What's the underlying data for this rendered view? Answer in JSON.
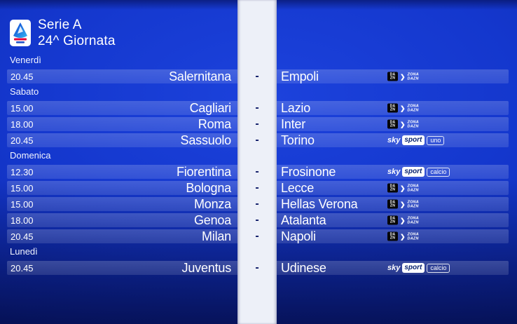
{
  "header": {
    "title": "Serie A",
    "subtitle": "24^ Giornata",
    "logo_name": "lega-serie-a-tim-logo"
  },
  "divider": {
    "dash": "-"
  },
  "colors": {
    "background_blue": "#1437cd",
    "stripe_light": "#edf0f8",
    "dash_navy": "#0c1966",
    "dazn_black": "#060606",
    "logo_red": "#e4003a",
    "sport_box_text": "#0a2472"
  },
  "channels": {
    "zona-dazn": {
      "type": "dazn",
      "box_line1": "DA",
      "box_line2": "ZN",
      "chevron": "❯",
      "stack_line1": "ZONA",
      "stack_line2": "DAZN"
    },
    "sky-sport-uno": {
      "type": "sky",
      "sky": "sky",
      "sport": "sport",
      "suffix": "uno"
    },
    "sky-sport-calcio": {
      "type": "sky",
      "sky": "sky",
      "sport": "sport",
      "suffix": "calcio"
    }
  },
  "schedule": {
    "days": [
      {
        "label": "Venerdì",
        "matches": [
          {
            "time": "20.45",
            "home": "Salernitana",
            "away": "Empoli",
            "channel": "zona-dazn"
          }
        ]
      },
      {
        "label": "Sabato",
        "matches": [
          {
            "time": "15.00",
            "home": "Cagliari",
            "away": "Lazio",
            "channel": "zona-dazn"
          },
          {
            "time": "18.00",
            "home": "Roma",
            "away": "Inter",
            "channel": "zona-dazn"
          },
          {
            "time": "20.45",
            "home": "Sassuolo",
            "away": "Torino",
            "channel": "sky-sport-uno"
          }
        ]
      },
      {
        "label": "Domenica",
        "matches": [
          {
            "time": "12.30",
            "home": "Fiorentina",
            "away": "Frosinone",
            "channel": "sky-sport-calcio"
          },
          {
            "time": "15.00",
            "home": "Bologna",
            "away": "Lecce",
            "channel": "zona-dazn"
          },
          {
            "time": "15.00",
            "home": "Monza",
            "away": "Hellas Verona",
            "channel": "zona-dazn"
          },
          {
            "time": "18.00",
            "home": "Genoa",
            "away": "Atalanta",
            "channel": "zona-dazn"
          },
          {
            "time": "20.45",
            "home": "Milan",
            "away": "Napoli",
            "channel": "zona-dazn"
          }
        ]
      },
      {
        "label": "Lunedì",
        "matches": [
          {
            "time": "20.45",
            "home": "Juventus",
            "away": "Udinese",
            "channel": "sky-sport-calcio"
          }
        ]
      }
    ]
  }
}
